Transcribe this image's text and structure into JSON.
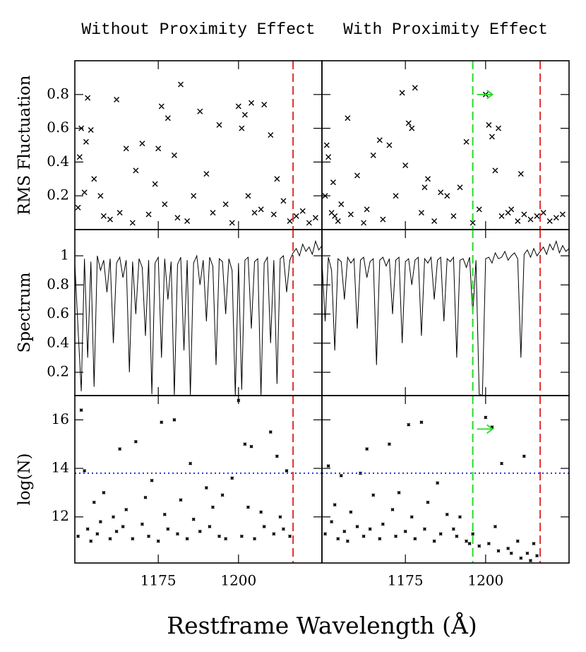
{
  "figure": {
    "xlabel": "Restframe Wavelength (Å)"
  },
  "chart_data": [
    {
      "type": "scatter",
      "marker": "x",
      "title": "Without Proximity Effect",
      "ylabel": "RMS Fluctuation",
      "color": "#000000",
      "xlim": [
        1149,
        1226
      ],
      "ylim": [
        0,
        1
      ],
      "xticks": [
        1175,
        1200
      ],
      "yticks": [
        0.2,
        0.4,
        0.6,
        0.8
      ],
      "show_xtick_labels": false,
      "show_ytick_labels": true,
      "x": [
        1150,
        1150.5,
        1151,
        1152,
        1152.5,
        1153,
        1154,
        1155,
        1157,
        1158,
        1160,
        1162,
        1163,
        1165,
        1167,
        1168,
        1170,
        1172,
        1174,
        1175,
        1176,
        1177,
        1178,
        1180,
        1181,
        1182,
        1184,
        1186,
        1188,
        1190,
        1192,
        1194,
        1196,
        1198,
        1200,
        1201,
        1202,
        1203,
        1204,
        1205,
        1207,
        1208,
        1210,
        1211,
        1212,
        1214,
        1216,
        1218,
        1220,
        1222,
        1224
      ],
      "values": [
        0.13,
        0.43,
        0.6,
        0.22,
        0.52,
        0.78,
        0.59,
        0.3,
        0.2,
        0.08,
        0.06,
        0.77,
        0.1,
        0.48,
        0.04,
        0.35,
        0.51,
        0.09,
        0.27,
        0.48,
        0.73,
        0.15,
        0.66,
        0.44,
        0.07,
        0.86,
        0.05,
        0.2,
        0.7,
        0.33,
        0.1,
        0.62,
        0.15,
        0.04,
        0.73,
        0.6,
        0.68,
        0.2,
        0.75,
        0.1,
        0.12,
        0.74,
        0.56,
        0.09,
        0.3,
        0.17,
        0.05,
        0.08,
        0.11,
        0.04,
        0.07
      ],
      "vlines": [
        {
          "value": 1217,
          "color": "#e03030"
        }
      ]
    },
    {
      "type": "scatter",
      "marker": "x",
      "title": "With Proximity Effect",
      "color": "#000000",
      "xlim": [
        1149,
        1226
      ],
      "ylim": [
        0,
        1
      ],
      "xticks": [
        1175,
        1200
      ],
      "yticks": [
        0.2,
        0.4,
        0.6,
        0.8
      ],
      "show_xtick_labels": false,
      "show_ytick_labels": false,
      "x": [
        1150,
        1150.5,
        1151,
        1152,
        1152.5,
        1153,
        1154,
        1155,
        1157,
        1158,
        1160,
        1162,
        1163,
        1165,
        1167,
        1168,
        1170,
        1172,
        1174,
        1175,
        1176,
        1177,
        1178,
        1180,
        1181,
        1182,
        1184,
        1186,
        1188,
        1190,
        1192,
        1194,
        1196,
        1198,
        1200,
        1201,
        1202,
        1203,
        1204,
        1205,
        1207,
        1208,
        1210,
        1211,
        1212,
        1214,
        1216,
        1218,
        1220,
        1222,
        1224
      ],
      "values": [
        0.2,
        0.5,
        0.43,
        0.1,
        0.28,
        0.08,
        0.05,
        0.15,
        0.66,
        0.09,
        0.32,
        0.04,
        0.12,
        0.44,
        0.53,
        0.06,
        0.5,
        0.2,
        0.81,
        0.38,
        0.63,
        0.6,
        0.84,
        0.1,
        0.25,
        0.3,
        0.05,
        0.22,
        0.2,
        0.08,
        0.25,
        0.52,
        0.04,
        0.12,
        0.8,
        0.62,
        0.55,
        0.35,
        0.6,
        0.08,
        0.1,
        0.12,
        0.05,
        0.33,
        0.09,
        0.06,
        0.08,
        0.1,
        0.05,
        0.07,
        0.09
      ],
      "vlines": [
        {
          "value": 1196,
          "color": "#22dd22",
          "arrow": true
        },
        {
          "value": 1217,
          "color": "#e03030"
        }
      ]
    },
    {
      "type": "line",
      "ylabel": "Spectrum",
      "color": "#000000",
      "xlim": [
        1149,
        1226
      ],
      "ylim": [
        0.04,
        1.18
      ],
      "xticks": [
        1175,
        1200
      ],
      "yticks": [
        0.2,
        0.4,
        0.6,
        0.8,
        1
      ],
      "show_xtick_labels": false,
      "show_ytick_labels": true,
      "x": [
        1149,
        1150,
        1151,
        1152,
        1153,
        1154,
        1155,
        1156,
        1157,
        1158,
        1159,
        1160,
        1161,
        1162,
        1163,
        1164,
        1165,
        1166,
        1167,
        1168,
        1169,
        1170,
        1171,
        1172,
        1173,
        1174,
        1175,
        1176,
        1177,
        1178,
        1179,
        1180,
        1181,
        1182,
        1183,
        1184,
        1185,
        1186,
        1187,
        1188,
        1189,
        1190,
        1191,
        1192,
        1193,
        1194,
        1195,
        1196,
        1197,
        1198,
        1199,
        1200,
        1201,
        1202,
        1203,
        1204,
        1205,
        1206,
        1207,
        1208,
        1209,
        1210,
        1211,
        1212,
        1213,
        1214,
        1215,
        1216,
        1217,
        1218,
        1219,
        1220,
        1221,
        1222,
        1223,
        1224,
        1225,
        1226
      ],
      "values": [
        0.95,
        0.5,
        0.07,
        0.98,
        0.3,
        0.96,
        0.1,
        1.0,
        0.9,
        0.97,
        0.75,
        0.98,
        0.4,
        0.95,
        0.99,
        0.85,
        0.97,
        0.2,
        0.96,
        0.6,
        0.98,
        0.92,
        0.45,
        0.97,
        0.05,
        0.95,
        0.99,
        0.3,
        0.98,
        0.7,
        0.96,
        0.04,
        0.94,
        0.99,
        0.35,
        0.97,
        0.04,
        0.95,
        1.0,
        0.8,
        0.97,
        0.55,
        0.99,
        0.93,
        0.25,
        0.98,
        0.96,
        0.6,
        0.98,
        0.9,
        0.04,
        0.95,
        0.08,
        0.97,
        0.99,
        0.5,
        0.96,
        0.98,
        0.04,
        0.95,
        0.99,
        0.4,
        0.97,
        0.12,
        0.98,
        1.0,
        0.75,
        0.97,
        1.02,
        1.05,
        1.0,
        1.08,
        1.03,
        1.06,
        1.01,
        1.1,
        1.04,
        1.07
      ],
      "vlines": [
        {
          "value": 1217,
          "color": "#e03030"
        }
      ]
    },
    {
      "type": "line",
      "color": "#000000",
      "xlim": [
        1149,
        1226
      ],
      "ylim": [
        0.04,
        1.18
      ],
      "xticks": [
        1175,
        1200
      ],
      "yticks": [
        0.2,
        0.4,
        0.6,
        0.8,
        1
      ],
      "show_xtick_labels": false,
      "show_ytick_labels": false,
      "x": [
        1149,
        1150,
        1151,
        1152,
        1153,
        1154,
        1155,
        1156,
        1157,
        1158,
        1159,
        1160,
        1161,
        1162,
        1163,
        1164,
        1165,
        1166,
        1167,
        1168,
        1169,
        1170,
        1171,
        1172,
        1173,
        1174,
        1175,
        1176,
        1177,
        1178,
        1179,
        1180,
        1181,
        1182,
        1183,
        1184,
        1185,
        1186,
        1187,
        1188,
        1189,
        1190,
        1191,
        1192,
        1193,
        1194,
        1195,
        1196,
        1197,
        1198,
        1199,
        1200,
        1201,
        1202,
        1203,
        1204,
        1205,
        1206,
        1207,
        1208,
        1209,
        1210,
        1211,
        1212,
        1213,
        1214,
        1215,
        1216,
        1217,
        1218,
        1219,
        1220,
        1221,
        1222,
        1223,
        1224,
        1225,
        1226
      ],
      "values": [
        0.97,
        0.55,
        0.99,
        0.9,
        0.35,
        0.98,
        0.96,
        0.7,
        0.99,
        0.95,
        0.98,
        0.5,
        0.97,
        0.99,
        0.85,
        0.96,
        0.98,
        0.25,
        0.97,
        0.99,
        0.93,
        0.98,
        0.6,
        0.97,
        0.99,
        0.4,
        0.96,
        0.98,
        0.8,
        0.97,
        0.99,
        0.45,
        0.98,
        0.95,
        0.99,
        0.7,
        0.97,
        0.99,
        0.55,
        0.98,
        0.96,
        0.99,
        0.3,
        0.97,
        0.98,
        0.92,
        0.99,
        0.6,
        0.97,
        0.05,
        0.04,
        0.98,
        0.99,
        0.95,
        1.02,
        0.98,
        0.99,
        1.03,
        0.97,
        1.0,
        1.02,
        0.98,
        0.3,
        1.01,
        1.04,
        0.99,
        1.05,
        1.0,
        1.03,
        1.06,
        1.01,
        1.08,
        1.04,
        1.1,
        1.02,
        1.07,
        1.03,
        1.05
      ],
      "vlines": [
        {
          "value": 1196,
          "color": "#22dd22"
        },
        {
          "value": 1217,
          "color": "#e03030"
        }
      ]
    },
    {
      "type": "scatter",
      "marker": "star",
      "ylabel": "log(N)",
      "color": "#000000",
      "xlim": [
        1149,
        1226
      ],
      "ylim": [
        10.1,
        17
      ],
      "xticks": [
        1175,
        1200
      ],
      "yticks": [
        12,
        14,
        16
      ],
      "show_xtick_labels": true,
      "show_ytick_labels": true,
      "x": [
        1150,
        1151,
        1152,
        1153,
        1154,
        1155,
        1156,
        1157,
        1158,
        1160,
        1161,
        1162,
        1163,
        1164,
        1165,
        1167,
        1168,
        1170,
        1171,
        1172,
        1173,
        1175,
        1176,
        1177,
        1178,
        1180,
        1181,
        1182,
        1184,
        1185,
        1186,
        1188,
        1190,
        1191,
        1192,
        1194,
        1195,
        1196,
        1198,
        1200,
        1201,
        1202,
        1203,
        1204,
        1205,
        1207,
        1208,
        1210,
        1211,
        1212,
        1213,
        1214,
        1215,
        1216
      ],
      "values": [
        11.2,
        16.4,
        13.9,
        11.5,
        11.0,
        12.6,
        11.3,
        11.8,
        13.0,
        11.1,
        12.0,
        11.4,
        14.8,
        11.6,
        12.3,
        11.1,
        15.1,
        11.7,
        12.8,
        11.2,
        13.5,
        11.0,
        15.9,
        12.1,
        11.5,
        16.0,
        11.3,
        12.7,
        11.1,
        14.2,
        11.9,
        11.4,
        13.2,
        11.6,
        12.4,
        11.2,
        12.9,
        11.1,
        13.6,
        16.8,
        11.2,
        15.0,
        12.4,
        14.9,
        11.1,
        12.2,
        11.6,
        15.5,
        11.3,
        14.5,
        12.0,
        11.5,
        13.9,
        11.2
      ],
      "hlines": [
        {
          "value": 13.8,
          "color": "#2233dd"
        }
      ],
      "vlines": [
        {
          "value": 1217,
          "color": "#e03030"
        }
      ]
    },
    {
      "type": "scatter",
      "marker": "star",
      "color": "#000000",
      "xlim": [
        1149,
        1226
      ],
      "ylim": [
        10.1,
        17
      ],
      "xticks": [
        1175,
        1200
      ],
      "yticks": [
        12,
        14,
        16
      ],
      "show_xtick_labels": true,
      "show_ytick_labels": false,
      "x": [
        1150,
        1151,
        1152,
        1153,
        1154,
        1155,
        1156,
        1157,
        1158,
        1160,
        1161,
        1162,
        1163,
        1164,
        1165,
        1167,
        1168,
        1170,
        1171,
        1172,
        1173,
        1175,
        1176,
        1177,
        1178,
        1180,
        1181,
        1182,
        1184,
        1185,
        1186,
        1188,
        1190,
        1191,
        1192,
        1194,
        1195,
        1196,
        1198,
        1200,
        1201,
        1202,
        1203,
        1204,
        1205,
        1207,
        1208,
        1210,
        1211,
        1212,
        1213,
        1214,
        1215,
        1216
      ],
      "values": [
        11.3,
        14.1,
        11.8,
        12.5,
        11.1,
        13.7,
        11.4,
        11.0,
        12.2,
        11.6,
        13.8,
        11.2,
        14.8,
        11.5,
        12.9,
        11.1,
        11.7,
        15.0,
        12.3,
        11.2,
        13.0,
        11.4,
        15.8,
        12.0,
        11.1,
        15.9,
        11.5,
        12.6,
        11.0,
        13.4,
        11.3,
        12.1,
        11.5,
        11.2,
        12.0,
        11.0,
        10.9,
        11.3,
        10.8,
        16.1,
        10.9,
        15.7,
        11.6,
        10.6,
        14.2,
        10.7,
        10.5,
        11.0,
        10.3,
        14.5,
        10.5,
        10.2,
        10.9,
        10.4
      ],
      "hlines": [
        {
          "value": 13.8,
          "color": "#2233dd"
        }
      ],
      "vlines": [
        {
          "value": 1196,
          "color": "#22dd22",
          "arrow": true
        },
        {
          "value": 1217,
          "color": "#e03030"
        }
      ]
    }
  ]
}
